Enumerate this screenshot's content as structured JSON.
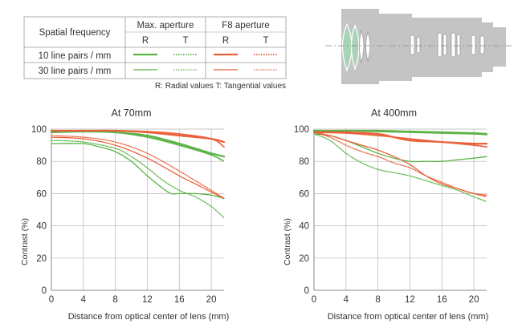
{
  "legend": {
    "col_header": "Spatial frequency",
    "group_max": "Max. aperture",
    "group_f8": "F8 aperture",
    "sub_r": "R",
    "sub_t": "T",
    "row1": "10 line pairs / mm",
    "row2": "30 line pairs / mm",
    "note": "R: Radial values  T: Tangential values",
    "colors": {
      "max": "#5bb347",
      "f8": "#e8613a"
    }
  },
  "chart_data": [
    {
      "type": "line",
      "title": "At 70mm",
      "xlabel": "Distance from optical center of lens (mm)",
      "ylabel": "Contrast (%)",
      "xlim": [
        0,
        21.6
      ],
      "ylim": [
        0,
        100
      ],
      "xticks": [
        "0",
        "4",
        "8",
        "12",
        "16",
        "20"
      ],
      "yticks": [
        "0",
        "20",
        "40",
        "60",
        "80",
        "100"
      ],
      "grid": true,
      "series": [
        {
          "name": "10 lp/mm Max. aperture R",
          "color": "#5bb347",
          "dash": "solid",
          "width": 2.2,
          "x": [
            0,
            4,
            8,
            12,
            16,
            18,
            20,
            21.6
          ],
          "y": [
            98,
            98.5,
            98,
            96,
            91,
            88,
            85,
            83
          ]
        },
        {
          "name": "10 lp/mm Max. aperture T",
          "color": "#5bb347",
          "dash": "dotted",
          "width": 1.8,
          "x": [
            0,
            4,
            8,
            12,
            16,
            20,
            21.6
          ],
          "y": [
            99,
            99,
            98,
            95,
            90,
            84,
            80
          ]
        },
        {
          "name": "10 lp/mm F8 aperture R",
          "color": "#e8613a",
          "dash": "solid",
          "width": 2.2,
          "x": [
            0,
            4,
            8,
            12,
            16,
            20,
            21.6
          ],
          "y": [
            99,
            99,
            99,
            98,
            96,
            94,
            92
          ]
        },
        {
          "name": "10 lp/mm F8 aperture T",
          "color": "#e8613a",
          "dash": "dotted",
          "width": 1.8,
          "x": [
            0,
            4,
            8,
            12,
            16,
            20,
            21.6
          ],
          "y": [
            99,
            99,
            99,
            98.5,
            97,
            94,
            89
          ]
        },
        {
          "name": "30 lp/mm Max. aperture R",
          "color": "#5bb347",
          "dash": "solid",
          "width": 1.3,
          "x": [
            0,
            4,
            6,
            8,
            10,
            12,
            14,
            15,
            16,
            18,
            20,
            21.6
          ],
          "y": [
            91,
            91,
            89,
            86,
            80,
            71,
            63,
            60,
            60,
            60,
            59,
            57
          ]
        },
        {
          "name": "30 lp/mm Max. aperture T",
          "color": "#5bb347",
          "dash": "dotted",
          "width": 1.3,
          "x": [
            0,
            4,
            8,
            10,
            12,
            14,
            16,
            18,
            20,
            21.6
          ],
          "y": [
            93,
            92,
            88,
            83,
            76,
            68,
            62,
            58,
            52,
            45
          ]
        },
        {
          "name": "30 lp/mm F8 aperture R",
          "color": "#e8613a",
          "dash": "solid",
          "width": 1.3,
          "x": [
            0,
            4,
            8,
            12,
            16,
            18,
            20,
            21.6
          ],
          "y": [
            95,
            94,
            90,
            82,
            71,
            66,
            61,
            57
          ]
        },
        {
          "name": "30 lp/mm F8 aperture T",
          "color": "#e8613a",
          "dash": "dotted",
          "width": 1.3,
          "x": [
            0,
            4,
            8,
            12,
            16,
            18,
            20,
            21.6
          ],
          "y": [
            96,
            95,
            92,
            85,
            74,
            68,
            62,
            57
          ]
        }
      ]
    },
    {
      "type": "line",
      "title": "At 400mm",
      "xlabel": "Distance from optical center of lens (mm)",
      "ylabel": "Contrast (%)",
      "xlim": [
        0,
        21.6
      ],
      "ylim": [
        0,
        100
      ],
      "xticks": [
        "0",
        "4",
        "8",
        "12",
        "16",
        "20"
      ],
      "yticks": [
        "0",
        "20",
        "40",
        "60",
        "80",
        "100"
      ],
      "grid": true,
      "series": [
        {
          "name": "10 lp/mm Max. aperture R",
          "color": "#5bb347",
          "dash": "solid",
          "width": 2.2,
          "x": [
            0,
            4,
            8,
            12,
            16,
            20,
            21.6
          ],
          "y": [
            99,
            99,
            99,
            98.5,
            98,
            97.5,
            97
          ]
        },
        {
          "name": "10 lp/mm Max. aperture T",
          "color": "#5bb347",
          "dash": "dotted",
          "width": 1.8,
          "x": [
            0,
            4,
            8,
            12,
            16,
            20,
            21.6
          ],
          "y": [
            99,
            99,
            98.5,
            98,
            97.5,
            97,
            96.5
          ]
        },
        {
          "name": "10 lp/mm F8 aperture R",
          "color": "#e8613a",
          "dash": "solid",
          "width": 2.2,
          "x": [
            0,
            4,
            8,
            10,
            12,
            16,
            20,
            21.6
          ],
          "y": [
            98,
            98,
            97,
            95,
            93,
            92,
            91,
            91
          ]
        },
        {
          "name": "10 lp/mm F8 aperture T",
          "color": "#e8613a",
          "dash": "dotted",
          "width": 1.8,
          "x": [
            0,
            4,
            8,
            12,
            16,
            20,
            21.6
          ],
          "y": [
            98,
            97.5,
            96,
            94,
            92,
            90,
            89
          ]
        },
        {
          "name": "30 lp/mm Max. aperture R",
          "color": "#5bb347",
          "dash": "solid",
          "width": 1.3,
          "x": [
            0,
            2,
            4,
            6,
            8,
            10,
            12,
            14,
            16,
            18,
            20,
            21.6
          ],
          "y": [
            97,
            96,
            93,
            89,
            85,
            82,
            80,
            80,
            80,
            81,
            82,
            83
          ]
        },
        {
          "name": "30 lp/mm Max. aperture T",
          "color": "#5bb347",
          "dash": "dotted",
          "width": 1.3,
          "x": [
            0,
            2,
            4,
            6,
            8,
            10,
            12,
            14,
            16,
            18,
            20,
            21.6
          ],
          "y": [
            97,
            93,
            85,
            79,
            75,
            73,
            71,
            68,
            65,
            62,
            58,
            55
          ]
        },
        {
          "name": "30 lp/mm F8 aperture R",
          "color": "#e8613a",
          "dash": "solid",
          "width": 1.3,
          "x": [
            0,
            2,
            4,
            6,
            8,
            10,
            12,
            14,
            16,
            18,
            20,
            21.6
          ],
          "y": [
            98,
            96,
            93,
            90,
            87,
            83,
            78,
            71,
            66,
            63,
            60,
            59
          ]
        },
        {
          "name": "30 lp/mm F8 aperture T",
          "color": "#e8613a",
          "dash": "dotted",
          "width": 1.3,
          "x": [
            0,
            2,
            4,
            6,
            8,
            10,
            12,
            14,
            16,
            18,
            20,
            21.6
          ],
          "y": [
            98,
            95,
            90,
            86,
            83,
            79,
            76,
            71,
            67,
            63,
            60,
            58
          ]
        }
      ]
    }
  ]
}
